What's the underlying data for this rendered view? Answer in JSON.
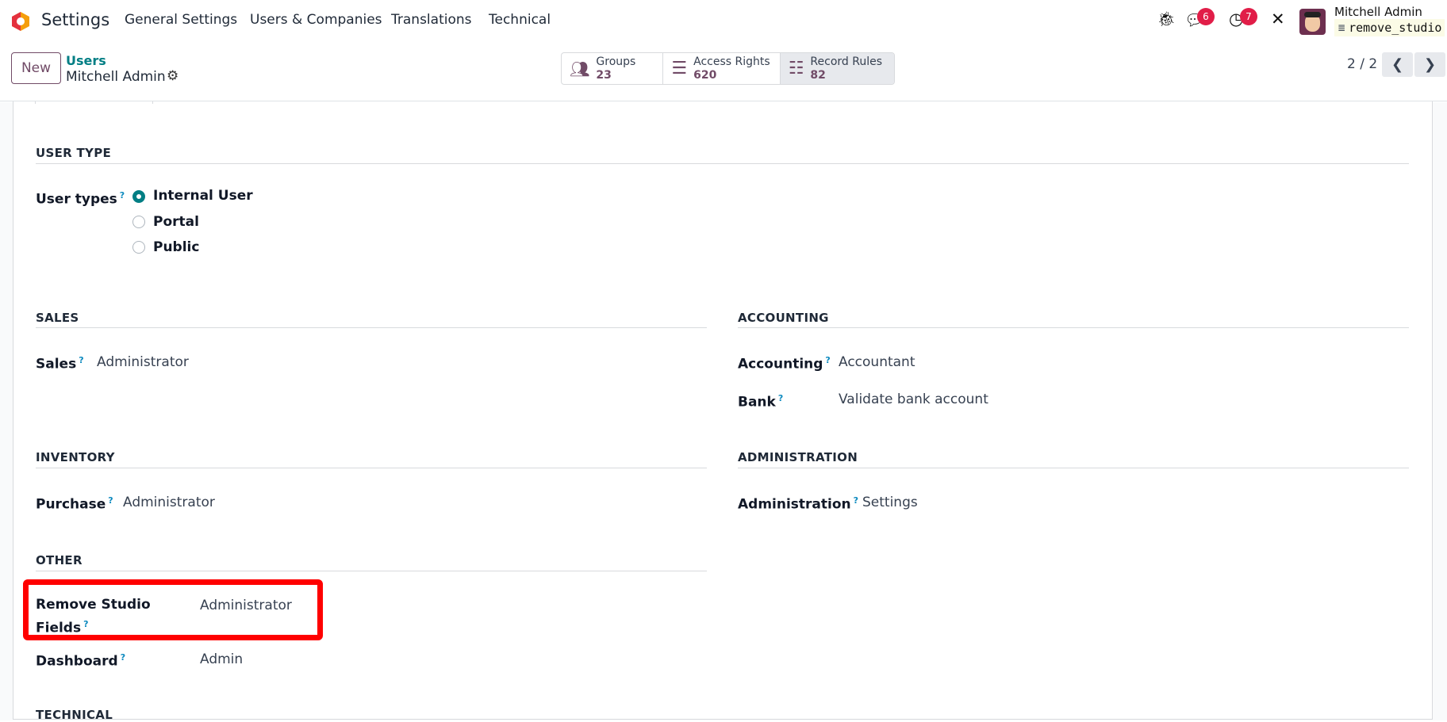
{
  "nav": {
    "app": "Settings",
    "menu": [
      "General Settings",
      "Users & Companies",
      "Translations",
      "Technical"
    ],
    "chat_count": "6",
    "activity_count": "7",
    "user": "Mitchell Admin",
    "database": "remove_studio"
  },
  "control": {
    "new_label": "New",
    "breadcrumb_parent": "Users",
    "breadcrumb_current": "Mitchell Admin",
    "pager": "2 / 2",
    "stats": [
      {
        "label": "Groups",
        "value": "23",
        "icon": "users-icon"
      },
      {
        "label": "Access Rights",
        "value": "620",
        "icon": "list-icon"
      },
      {
        "label": "Record Rules",
        "value": "82",
        "icon": "list-ul-icon"
      }
    ]
  },
  "form": {
    "user_type": {
      "heading": "USER TYPE",
      "label": "User types",
      "help": "?",
      "options": [
        "Internal User",
        "Portal",
        "Public"
      ],
      "selected": "Internal User"
    },
    "sales": {
      "heading": "SALES",
      "label": "Sales",
      "help": "?",
      "value": "Administrator"
    },
    "accounting": {
      "heading": "ACCOUNTING",
      "fields": [
        {
          "label": "Accounting",
          "help": "?",
          "value": "Accountant"
        },
        {
          "label": "Bank",
          "help": "?",
          "value": "Validate bank account"
        }
      ]
    },
    "inventory": {
      "heading": "INVENTORY",
      "label": "Purchase",
      "help": "?",
      "value": "Administrator"
    },
    "administration": {
      "heading": "ADMINISTRATION",
      "label": "Administration",
      "help": "?",
      "value": "Settings"
    },
    "other": {
      "heading": "OTHER",
      "fields": [
        {
          "label_line1": "Remove Studio",
          "label_line2": "Fields",
          "help": "?",
          "value": "Administrator"
        },
        {
          "label": "Dashboard",
          "help": "?",
          "value": "Admin"
        }
      ]
    },
    "technical": {
      "heading": "TECHNICAL"
    }
  },
  "colors": {
    "brand": "#714B67",
    "accent": "#017E84",
    "highlight": "#ff0000",
    "badge": "#e11d48"
  }
}
